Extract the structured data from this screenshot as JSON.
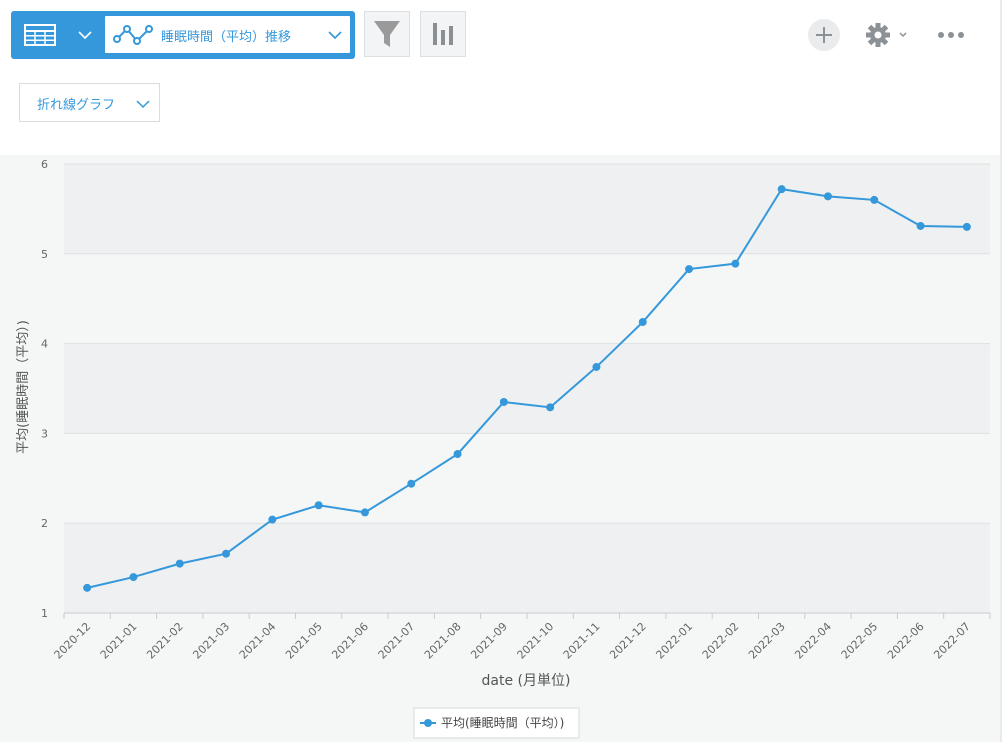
{
  "toolbar": {
    "table_icon": "table-grid-icon",
    "graph_selector_label": "睡眠時間（平均）推移",
    "line_graph_icon": "line-graph-icon",
    "filter_icon": "funnel-icon",
    "bars_icon": "bar-chart-icon",
    "add_icon": "plus-icon",
    "gear_icon": "gear-icon",
    "more_icon": "more-dots-icon"
  },
  "chart_type_select": {
    "label": "折れ線グラフ"
  },
  "colors": {
    "accent": "#3498db",
    "series": "#3498db",
    "band": "#eff0f2",
    "background": "#f5f7f7"
  },
  "chart_data": {
    "type": "line",
    "categories": [
      "2020-12",
      "2021-01",
      "2021-02",
      "2021-03",
      "2021-04",
      "2021-05",
      "2021-06",
      "2021-07",
      "2021-08",
      "2021-09",
      "2021-10",
      "2021-11",
      "2021-12",
      "2022-01",
      "2022-02",
      "2022-03",
      "2022-04",
      "2022-05",
      "2022-06",
      "2022-07"
    ],
    "series": [
      {
        "name": "平均(睡眠時間（平均）)",
        "values": [
          1.28,
          1.4,
          1.55,
          1.66,
          2.04,
          2.2,
          2.12,
          2.44,
          2.77,
          3.35,
          3.29,
          3.74,
          4.24,
          4.83,
          4.89,
          5.72,
          5.64,
          5.6,
          5.31,
          5.3
        ]
      }
    ],
    "xlabel": "date (月単位)",
    "ylabel": "平均(睡眠時間（平均）)",
    "ylim": [
      1,
      6
    ],
    "yticks": [
      1,
      2,
      3,
      4,
      5,
      6
    ],
    "grid": true,
    "legend_position": "bottom-center"
  }
}
